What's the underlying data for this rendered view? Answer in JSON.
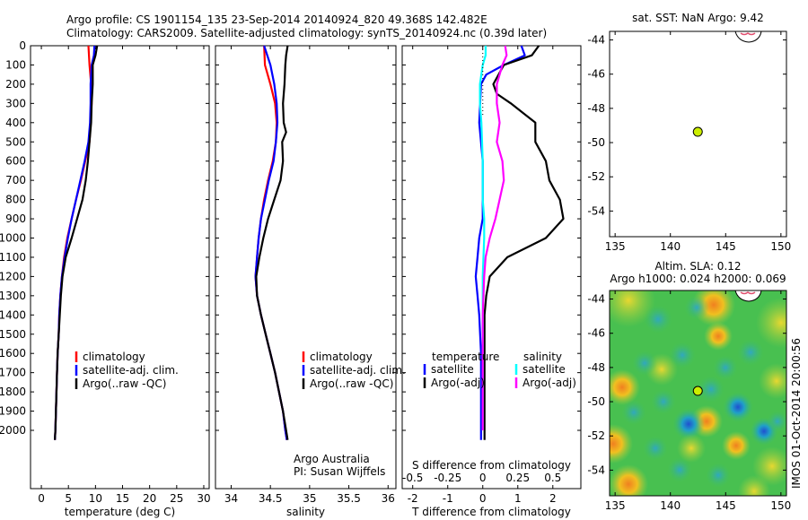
{
  "header": {
    "line1": "Argo profile: CS 1901154_135 23-Sep-2014 20140924_820 49.368S 142.482E",
    "line2": "Climatology: CARS2009. Satellite-adjusted climatology: synTS_20140924.nc (0.39d later)"
  },
  "depth_ticks": [
    "0",
    "100",
    "200",
    "300",
    "400",
    "500",
    "600",
    "700",
    "800",
    "900",
    "1000",
    "1100",
    "1200",
    "1300",
    "1400",
    "1500",
    "1600",
    "1700",
    "1800",
    "1900",
    "2000"
  ],
  "colors": {
    "climatology": "#ff0000",
    "satellite": "#0000ff",
    "argo": "#000000",
    "sat_salinity": "#00ffff",
    "argo_salinity": "#ff00ff",
    "float_marker": "#ccee00"
  },
  "chart_data": [
    {
      "type": "line",
      "xlabel": "temperature (deg C)",
      "xticks": [
        "0",
        "5",
        "10",
        "15",
        "20",
        "25",
        "30"
      ],
      "xlim": [
        -2,
        31
      ],
      "ylim": [
        2060,
        0
      ],
      "legend_position": "lower-center",
      "series": [
        {
          "name": "climatology",
          "points": [
            [
              8.7,
              0
            ],
            [
              8.9,
              100
            ],
            [
              9.2,
              200
            ],
            [
              9.3,
              300
            ],
            [
              9.1,
              400
            ],
            [
              8.9,
              500
            ],
            [
              8.1,
              600
            ],
            [
              7.3,
              700
            ],
            [
              6.4,
              800
            ],
            [
              5.6,
              900
            ],
            [
              4.8,
              1000
            ],
            [
              4.2,
              1100
            ],
            [
              3.8,
              1200
            ],
            [
              3.5,
              1300
            ],
            [
              3.3,
              1400
            ],
            [
              3.2,
              1500
            ],
            [
              3.0,
              1600
            ],
            [
              2.9,
              1700
            ],
            [
              2.8,
              1800
            ],
            [
              2.7,
              1900
            ],
            [
              2.6,
              2000
            ],
            [
              2.5,
              2050
            ]
          ]
        },
        {
          "name": "satellite-adj. clim.",
          "points": [
            [
              9.8,
              0
            ],
            [
              9.7,
              50
            ],
            [
              9.3,
              100
            ],
            [
              9.1,
              200
            ],
            [
              9.1,
              300
            ],
            [
              9.0,
              400
            ],
            [
              8.7,
              500
            ],
            [
              8.0,
              600
            ],
            [
              7.2,
              700
            ],
            [
              6.4,
              800
            ],
            [
              5.6,
              900
            ],
            [
              4.9,
              1000
            ],
            [
              4.3,
              1100
            ],
            [
              3.8,
              1200
            ],
            [
              3.5,
              1300
            ],
            [
              3.3,
              1400
            ],
            [
              3.2,
              1500
            ],
            [
              3.0,
              1600
            ],
            [
              2.9,
              1700
            ],
            [
              2.8,
              1800
            ],
            [
              2.7,
              1900
            ],
            [
              2.6,
              2000
            ],
            [
              2.5,
              2050
            ]
          ]
        },
        {
          "name": "Argo(..raw -QC)",
          "points": [
            [
              10.3,
              0
            ],
            [
              10.0,
              50
            ],
            [
              9.5,
              100
            ],
            [
              9.5,
              200
            ],
            [
              9.3,
              300
            ],
            [
              9.2,
              400
            ],
            [
              8.9,
              500
            ],
            [
              8.6,
              600
            ],
            [
              8.2,
              700
            ],
            [
              7.6,
              800
            ],
            [
              6.6,
              900
            ],
            [
              5.6,
              1000
            ],
            [
              4.5,
              1100
            ],
            [
              3.9,
              1200
            ],
            [
              3.6,
              1300
            ],
            [
              3.4,
              1400
            ],
            [
              3.2,
              1500
            ],
            [
              3.0,
              1600
            ],
            [
              2.9,
              1700
            ],
            [
              2.8,
              1800
            ],
            [
              2.7,
              1900
            ],
            [
              2.6,
              2000
            ],
            [
              2.5,
              2050
            ]
          ]
        }
      ]
    },
    {
      "type": "line",
      "xlabel": "salinity",
      "xticks": [
        "34",
        "34.5",
        "35",
        "35.5",
        "36"
      ],
      "xlim": [
        33.8,
        36.1
      ],
      "ylim": [
        2060,
        0
      ],
      "legend_position": "lower-right",
      "annotation": [
        "Argo Australia",
        "PI: Susan Wijffels"
      ],
      "series": [
        {
          "name": "climatology",
          "points": [
            [
              34.42,
              0
            ],
            [
              34.43,
              100
            ],
            [
              34.5,
              200
            ],
            [
              34.56,
              300
            ],
            [
              34.58,
              400
            ],
            [
              34.57,
              500
            ],
            [
              34.53,
              600
            ],
            [
              34.47,
              700
            ],
            [
              34.42,
              800
            ],
            [
              34.38,
              900
            ],
            [
              34.35,
              1000
            ],
            [
              34.33,
              1100
            ],
            [
              34.31,
              1200
            ],
            [
              34.33,
              1300
            ],
            [
              34.38,
              1400
            ],
            [
              34.44,
              1500
            ],
            [
              34.5,
              1600
            ],
            [
              34.56,
              1700
            ],
            [
              34.61,
              1800
            ],
            [
              34.66,
              1900
            ],
            [
              34.69,
              2000
            ],
            [
              34.71,
              2050
            ]
          ]
        },
        {
          "name": "satellite-adj. clim.",
          "points": [
            [
              34.42,
              0
            ],
            [
              34.5,
              100
            ],
            [
              34.55,
              200
            ],
            [
              34.58,
              300
            ],
            [
              34.59,
              400
            ],
            [
              34.57,
              500
            ],
            [
              34.54,
              600
            ],
            [
              34.48,
              700
            ],
            [
              34.43,
              800
            ],
            [
              34.38,
              900
            ],
            [
              34.35,
              1000
            ],
            [
              34.33,
              1100
            ],
            [
              34.31,
              1200
            ],
            [
              34.33,
              1300
            ],
            [
              34.38,
              1400
            ],
            [
              34.44,
              1500
            ],
            [
              34.5,
              1600
            ],
            [
              34.56,
              1700
            ],
            [
              34.61,
              1800
            ],
            [
              34.66,
              1900
            ],
            [
              34.69,
              2000
            ],
            [
              34.71,
              2050
            ]
          ]
        },
        {
          "name": "Argo(..raw -QC)",
          "points": [
            [
              34.72,
              0
            ],
            [
              34.7,
              50
            ],
            [
              34.69,
              100
            ],
            [
              34.68,
              200
            ],
            [
              34.66,
              300
            ],
            [
              34.67,
              400
            ],
            [
              34.7,
              450
            ],
            [
              34.65,
              500
            ],
            [
              34.66,
              600
            ],
            [
              34.63,
              700
            ],
            [
              34.55,
              800
            ],
            [
              34.47,
              900
            ],
            [
              34.41,
              1000
            ],
            [
              34.36,
              1100
            ],
            [
              34.32,
              1200
            ],
            [
              34.33,
              1300
            ],
            [
              34.38,
              1400
            ],
            [
              34.44,
              1500
            ],
            [
              34.5,
              1600
            ],
            [
              34.56,
              1700
            ],
            [
              34.61,
              1800
            ],
            [
              34.66,
              1900
            ],
            [
              34.7,
              2000
            ],
            [
              34.72,
              2050
            ]
          ]
        }
      ]
    },
    {
      "type": "line",
      "xlabel": "T difference from climatology",
      "xlabel_top": "S difference from climatology",
      "xticks": [
        "-2",
        "-1",
        "0",
        "1",
        "2"
      ],
      "xticks_top": [
        "-0.5",
        "-0.25",
        "0",
        "0.25",
        "0.5"
      ],
      "xlim": [
        -2.3,
        2.8
      ],
      "ylim": [
        2060,
        0
      ],
      "legend_position": "lower",
      "legend_titles": [
        "temperature",
        "salinity"
      ],
      "series": [
        {
          "name": "satellite",
          "variable": "temperature",
          "points": [
            [
              1.1,
              0
            ],
            [
              1.2,
              50
            ],
            [
              0.6,
              100
            ],
            [
              0.1,
              150
            ],
            [
              -0.05,
              200
            ],
            [
              -0.1,
              400
            ],
            [
              0.0,
              600
            ],
            [
              0.0,
              800
            ],
            [
              0.0,
              900
            ],
            [
              -0.1,
              1000
            ],
            [
              -0.15,
              1100
            ],
            [
              -0.2,
              1200
            ],
            [
              -0.15,
              1300
            ],
            [
              -0.1,
              1400
            ],
            [
              -0.05,
              1600
            ],
            [
              -0.05,
              1800
            ],
            [
              -0.05,
              2000
            ],
            [
              -0.05,
              2050
            ]
          ]
        },
        {
          "name": "Argo(-adj)",
          "variable": "temperature",
          "points": [
            [
              1.6,
              0
            ],
            [
              1.4,
              50
            ],
            [
              0.6,
              100
            ],
            [
              0.3,
              200
            ],
            [
              0.4,
              250
            ],
            [
              0.8,
              300
            ],
            [
              1.5,
              400
            ],
            [
              1.5,
              500
            ],
            [
              1.8,
              600
            ],
            [
              1.9,
              700
            ],
            [
              2.2,
              800
            ],
            [
              2.3,
              900
            ],
            [
              1.8,
              1000
            ],
            [
              0.7,
              1100
            ],
            [
              0.2,
              1200
            ],
            [
              0.1,
              1300
            ],
            [
              0.05,
              1400
            ],
            [
              0.05,
              1600
            ],
            [
              0.05,
              1800
            ],
            [
              0.05,
              2000
            ],
            [
              0.05,
              2050
            ]
          ]
        },
        {
          "name": "satellite",
          "variable": "salinity",
          "points": [
            [
              0.02,
              0
            ],
            [
              0.02,
              50
            ],
            [
              0.0,
              100
            ],
            [
              -0.02,
              200
            ],
            [
              -0.02,
              300
            ],
            [
              -0.01,
              400
            ],
            [
              0.0,
              600
            ],
            [
              0.0,
              800
            ],
            [
              0.01,
              900
            ],
            [
              0.01,
              1000
            ],
            [
              0.0,
              1200
            ],
            [
              0.0,
              1600
            ],
            [
              0.0,
              2000
            ]
          ]
        },
        {
          "name": "Argo(-adj)",
          "variable": "salinity",
          "points": [
            [
              0.16,
              0
            ],
            [
              0.17,
              50
            ],
            [
              0.14,
              100
            ],
            [
              0.1,
              200
            ],
            [
              0.1,
              300
            ],
            [
              0.12,
              400
            ],
            [
              0.1,
              500
            ],
            [
              0.14,
              600
            ],
            [
              0.15,
              700
            ],
            [
              0.12,
              800
            ],
            [
              0.09,
              900
            ],
            [
              0.05,
              1000
            ],
            [
              0.02,
              1100
            ],
            [
              0.01,
              1200
            ],
            [
              0.0,
              1400
            ],
            [
              0.0,
              1600
            ],
            [
              0.0,
              2000
            ]
          ]
        }
      ]
    },
    {
      "type": "scatter",
      "title": "sat. SST: NaN Argo: 9.42",
      "xticks": [
        "135",
        "140",
        "145",
        "150"
      ],
      "yticks": [
        "-44",
        "-46",
        "-48",
        "-50",
        "-52",
        "-54"
      ],
      "xlim": [
        134.5,
        150.5
      ],
      "ylim": [
        -55.5,
        -43.5
      ],
      "float_position": [
        142.48,
        -49.37
      ]
    },
    {
      "type": "heatmap",
      "title_lines": [
        "Altim. SLA: 0.12",
        "Argo h1000: 0.024 h2000: 0.069"
      ],
      "xticks": [
        "135",
        "140",
        "145",
        "150"
      ],
      "yticks": [
        "-44",
        "-46",
        "-48",
        "-50",
        "-52",
        "-54"
      ],
      "xlim": [
        134.5,
        150.5
      ],
      "ylim": [
        -55.5,
        -43.5
      ],
      "float_position": [
        142.48,
        -49.37
      ],
      "side_label": "IMOS 01-Oct-2014 20:00:56"
    }
  ]
}
